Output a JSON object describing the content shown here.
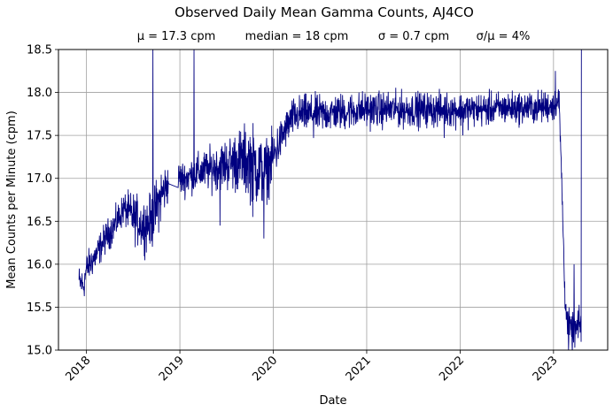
{
  "chart_data": {
    "type": "line",
    "title": "Observed Daily Mean Gamma Counts, AJ4CO",
    "stats": {
      "mean": "μ = 17.3 cpm",
      "median": "median = 18 cpm",
      "sigma": "σ = 0.7 cpm",
      "ratio": "σ/μ = 4%"
    },
    "xlabel": "Date",
    "ylabel": "Mean Counts per Minute (cpm)",
    "xlim": [
      2017.7,
      2023.58
    ],
    "ylim": [
      15.0,
      18.5
    ],
    "xticks": [
      2018,
      2019,
      2020,
      2021,
      2022,
      2023
    ],
    "xtick_labels": [
      "2018",
      "2019",
      "2020",
      "2021",
      "2022",
      "2023"
    ],
    "yticks": [
      15.0,
      15.5,
      16.0,
      16.5,
      17.0,
      17.5,
      18.0,
      18.5
    ],
    "ytick_labels": [
      "15.0",
      "15.5",
      "16.0",
      "16.5",
      "17.0",
      "17.5",
      "18.0",
      "18.5"
    ],
    "grid": true,
    "line_color": "#000080",
    "series": [
      {
        "trend": [
          [
            2017.92,
            15.8
          ],
          [
            2017.97,
            15.75
          ],
          [
            2018.0,
            15.95
          ],
          [
            2018.1,
            16.1
          ],
          [
            2018.2,
            16.3
          ],
          [
            2018.3,
            16.45
          ],
          [
            2018.4,
            16.65
          ],
          [
            2018.5,
            16.55
          ],
          [
            2018.6,
            16.45
          ],
          [
            2018.7,
            16.5
          ],
          [
            2018.76,
            16.7
          ],
          [
            2018.8,
            16.8
          ],
          [
            2018.85,
            16.9
          ],
          [
            2018.95,
            17.0
          ],
          [
            2019.05,
            17.0
          ],
          [
            2019.15,
            17.05
          ],
          [
            2019.3,
            17.1
          ],
          [
            2019.45,
            17.15
          ],
          [
            2019.6,
            17.2
          ],
          [
            2019.75,
            17.2
          ],
          [
            2019.9,
            17.05
          ],
          [
            2020.0,
            17.25
          ],
          [
            2020.1,
            17.5
          ],
          [
            2020.2,
            17.7
          ],
          [
            2020.3,
            17.75
          ],
          [
            2020.5,
            17.75
          ],
          [
            2020.8,
            17.78
          ],
          [
            2021.0,
            17.8
          ],
          [
            2021.3,
            17.8
          ],
          [
            2021.6,
            17.8
          ],
          [
            2021.9,
            17.8
          ],
          [
            2022.2,
            17.8
          ],
          [
            2022.5,
            17.82
          ],
          [
            2022.8,
            17.82
          ],
          [
            2023.0,
            17.85
          ],
          [
            2023.06,
            17.9
          ],
          [
            2023.09,
            16.9
          ],
          [
            2023.12,
            15.7
          ],
          [
            2023.15,
            15.3
          ],
          [
            2023.2,
            15.2
          ],
          [
            2023.25,
            15.25
          ],
          [
            2023.3,
            15.3
          ]
        ],
        "noise": [
          [
            2017.92,
            0.1
          ],
          [
            2018.4,
            0.1
          ],
          [
            2018.5,
            0.15
          ],
          [
            2018.8,
            0.18
          ],
          [
            2018.9,
            0.1
          ],
          [
            2019.2,
            0.12
          ],
          [
            2019.45,
            0.15
          ],
          [
            2019.8,
            0.25
          ],
          [
            2020.1,
            0.12
          ],
          [
            2022.9,
            0.1
          ],
          [
            2023.12,
            0.1
          ],
          [
            2023.3,
            0.12
          ]
        ],
        "spikes": [
          [
            2018.71,
            18.5
          ],
          [
            2019.15,
            18.5
          ],
          [
            2019.43,
            16.45
          ],
          [
            2019.78,
            16.55
          ],
          [
            2019.9,
            16.3
          ],
          [
            2020.43,
            17.47
          ],
          [
            2021.83,
            17.47
          ],
          [
            2022.03,
            17.5
          ],
          [
            2023.02,
            18.25
          ],
          [
            2023.22,
            16.0
          ],
          [
            2023.16,
            15.0
          ],
          [
            2023.3,
            18.5
          ]
        ],
        "gaps": [
          [
            2018.88,
            2018.98
          ]
        ],
        "step_years": 0.0027
      }
    ]
  }
}
